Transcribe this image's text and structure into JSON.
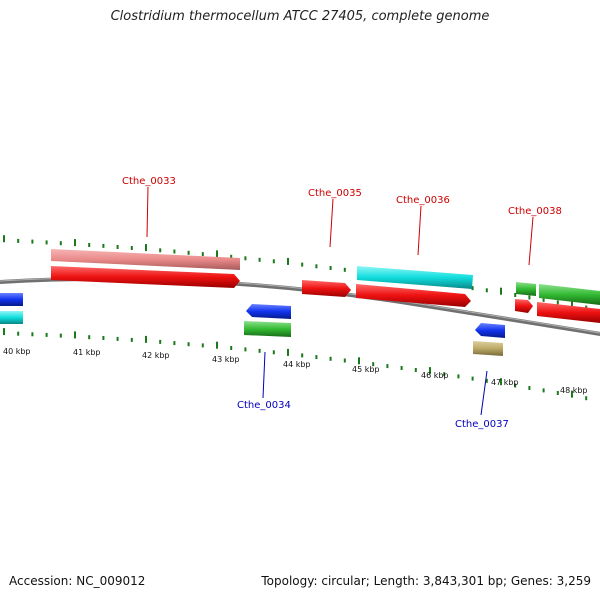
{
  "header": {
    "title": "Clostridium thermocellum ATCC 27405, complete genome"
  },
  "footer": {
    "accession": "Accession: NC_009012",
    "summary": "Topology: circular; Length: 3,843,301 bp; Genes: 3,259"
  },
  "map": {
    "kbp_labels": [
      "40 kbp",
      "41 kbp",
      "42 kbp",
      "43 kbp",
      "44 kbp",
      "45 kbp",
      "46 kbp",
      "47 kbp",
      "48 kbp"
    ],
    "top_genes": [
      "Cthe_0033",
      "Cthe_0035",
      "Cthe_0036",
      "Cthe_0038"
    ],
    "bottom_genes": [
      "Cthe_0034",
      "Cthe_0037"
    ],
    "colors": {
      "forward_label": "#cc0000",
      "reverse_label": "#0000bb",
      "tick": "#1a7a1a",
      "backbone": "#808080",
      "red": "#ee1111",
      "pink": "#ee8888",
      "cyan": "#11dddd",
      "blue": "#1133ee",
      "green": "#33bb33",
      "khaki": "#bbaa66"
    }
  }
}
